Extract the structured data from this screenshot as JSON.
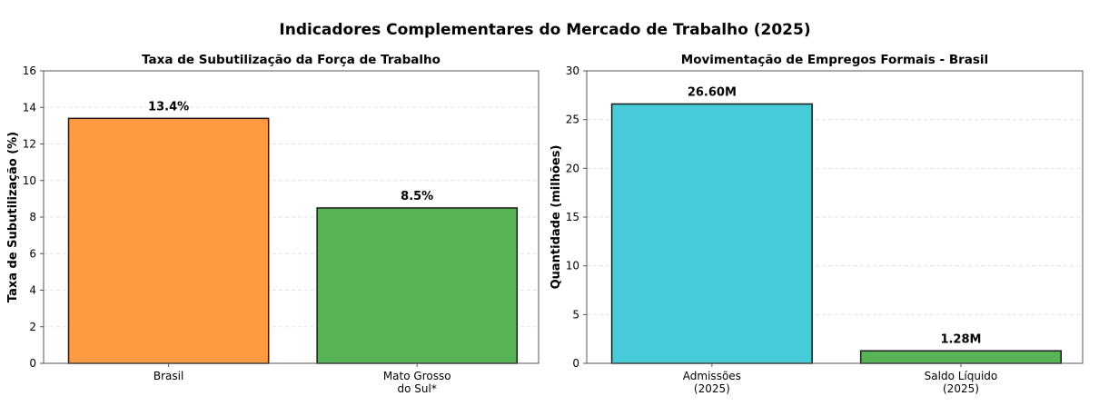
{
  "suptitle": "Indicadores Complementares do Mercado de Trabalho (2025)",
  "chart_data": [
    {
      "type": "bar",
      "title": "Taxa de Subutilização da Força de Trabalho",
      "xlabel": "",
      "ylabel": "Taxa de Subutilização (%)",
      "categories": [
        "Brasil",
        "Mato Grosso\ndo Sul*"
      ],
      "values": [
        13.4,
        8.5
      ],
      "value_labels": [
        "13.4%",
        "8.5%"
      ],
      "colors": [
        "#ff9a40",
        "#56b356"
      ],
      "ylim": [
        0,
        16
      ],
      "yticks": [
        0,
        2,
        4,
        6,
        8,
        10,
        12,
        14,
        16
      ],
      "grid": true
    },
    {
      "type": "bar",
      "title": "Movimentação de Empregos Formais - Brasil",
      "xlabel": "",
      "ylabel": "Quantidade (milhões)",
      "categories": [
        "Admissões\n(2025)",
        "Saldo Líquido\n(2025)"
      ],
      "values": [
        26.6,
        1.28
      ],
      "value_labels": [
        "26.60M",
        "1.28M"
      ],
      "colors": [
        "#48cbd8",
        "#56b356"
      ],
      "ylim": [
        0,
        30
      ],
      "yticks": [
        0,
        5,
        10,
        15,
        20,
        25,
        30
      ],
      "grid": true
    }
  ]
}
